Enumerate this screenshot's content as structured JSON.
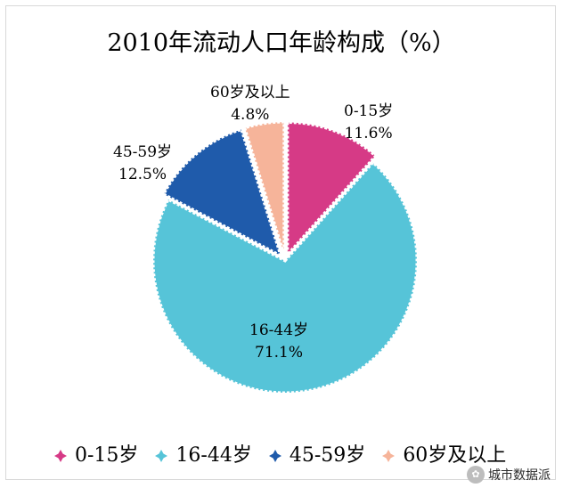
{
  "chart_data": {
    "type": "pie",
    "title": "2010年流动人口年龄构成（%）",
    "categories": [
      "0-15岁",
      "16-44岁",
      "45-59岁",
      "60岁及以上"
    ],
    "values": [
      11.6,
      71.1,
      12.5,
      4.8
    ],
    "value_labels": [
      "11.6%",
      "71.1%",
      "12.5%",
      "4.8%"
    ],
    "colors": [
      "#d63a86",
      "#56c4d8",
      "#1f5bab",
      "#f6b49a"
    ],
    "legend_position": "bottom",
    "start_angle": "12 o'clock, clockwise"
  },
  "watermark": {
    "text": "城市数据派",
    "icon": "wechat-icon"
  }
}
